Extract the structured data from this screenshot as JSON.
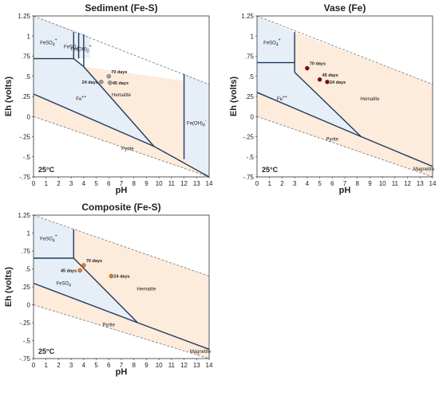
{
  "colors": {
    "blue_region": "#e6eef8",
    "orange_region": "#fdebdc",
    "boundary": "#1f3b5c",
    "dashed": "#777777"
  },
  "chart_data": [
    {
      "type": "scatter",
      "title": "Sediment (Fe-S)",
      "xlabel": "pH",
      "ylabel": "Eh (volts)",
      "xlim": [
        0,
        14
      ],
      "ylim": [
        -0.75,
        1.25
      ],
      "x_ticks": [
        "0",
        "1",
        "2",
        "3",
        "4",
        "5",
        "6",
        "7",
        "8",
        "9",
        "10",
        "11",
        "12",
        "13",
        "14"
      ],
      "y_ticks": [
        "-.75",
        "-.5",
        "-.25",
        "0",
        ".25",
        ".5",
        ".75",
        "1",
        "1.25"
      ],
      "temperature": "25°C",
      "field_labels": [
        {
          "text": "FeSO4+",
          "x": 1.2,
          "y": 0.9
        },
        {
          "text": "FeSO4",
          "x": 3.0,
          "y": 0.85
        },
        {
          "text": "Fe(OH)2+",
          "x": 3.8,
          "y": 0.82
        },
        {
          "text": "Fe++",
          "x": 3.8,
          "y": 0.2
        },
        {
          "text": "Hematite",
          "x": 7.0,
          "y": 0.25
        },
        {
          "text": "Fe(OH)4-",
          "x": 13.0,
          "y": -0.1
        },
        {
          "text": "Pyrite",
          "x": 7.5,
          "y": -0.42
        }
      ],
      "series": [
        {
          "name": "70 days",
          "x": [
            6.0
          ],
          "y": [
            0.5
          ],
          "color": "#9a9a9a"
        },
        {
          "name": "24 days",
          "x": [
            5.4
          ],
          "y": [
            0.43
          ],
          "color": "#9a9a9a"
        },
        {
          "name": "45 days",
          "x": [
            6.1
          ],
          "y": [
            0.42
          ],
          "color": "#9a9a9a"
        }
      ]
    },
    {
      "type": "scatter",
      "title": "Vase (Fe)",
      "xlabel": "pH",
      "ylabel": "Eh (volts)",
      "xlim": [
        0,
        14
      ],
      "ylim": [
        -0.75,
        1.25
      ],
      "x_ticks": [
        "0",
        "1",
        "2",
        "3",
        "4",
        "5",
        "6",
        "7",
        "8",
        "9",
        "10",
        "11",
        "12",
        "13",
        "14"
      ],
      "y_ticks": [
        "-.75",
        "-.5",
        "-.25",
        "0",
        ".25",
        ".5",
        ".75",
        "1",
        "1.25"
      ],
      "temperature": "25°C",
      "field_labels": [
        {
          "text": "FeSO4+",
          "x": 1.2,
          "y": 0.9
        },
        {
          "text": "Fe++",
          "x": 2.0,
          "y": 0.2
        },
        {
          "text": "Hematite",
          "x": 9.0,
          "y": 0.2
        },
        {
          "text": "Pyrite",
          "x": 6.0,
          "y": -0.3
        },
        {
          "text": "Magnetite",
          "x": 13.3,
          "y": -0.67
        }
      ],
      "series": [
        {
          "name": "70 days",
          "x": [
            4.0
          ],
          "y": [
            0.6
          ],
          "color": "#7a0c0c"
        },
        {
          "name": "45 days",
          "x": [
            5.0
          ],
          "y": [
            0.46
          ],
          "color": "#7a0c0c"
        },
        {
          "name": "24 days",
          "x": [
            5.6
          ],
          "y": [
            0.43
          ],
          "color": "#7a0c0c"
        }
      ]
    },
    {
      "type": "scatter",
      "title": "Composite (Fe-S)",
      "xlabel": "pH",
      "ylabel": "Eh (volts)",
      "xlim": [
        0,
        14
      ],
      "ylim": [
        -0.75,
        1.25
      ],
      "x_ticks": [
        "0",
        "1",
        "2",
        "3",
        "4",
        "5",
        "6",
        "7",
        "8",
        "9",
        "10",
        "11",
        "12",
        "13",
        "14"
      ],
      "y_ticks": [
        "-.75",
        "-.5",
        "-.25",
        "0",
        ".25",
        ".5",
        ".75",
        "1",
        "1.25"
      ],
      "temperature": "25°C",
      "field_labels": [
        {
          "text": "FeSO4+",
          "x": 1.2,
          "y": 0.9
        },
        {
          "text": "FeSO4",
          "x": 2.4,
          "y": 0.28
        },
        {
          "text": "Hematite",
          "x": 9.0,
          "y": 0.2
        },
        {
          "text": "Pyrite",
          "x": 6.0,
          "y": -0.3
        },
        {
          "text": "Magnetite",
          "x": 13.3,
          "y": -0.67
        }
      ],
      "series": [
        {
          "name": "70 days",
          "x": [
            4.0
          ],
          "y": [
            0.55
          ],
          "color": "#e07a1f"
        },
        {
          "name": "45 days",
          "x": [
            3.7
          ],
          "y": [
            0.48
          ],
          "color": "#e07a1f"
        },
        {
          "name": "24 days",
          "x": [
            6.2
          ],
          "y": [
            0.4
          ],
          "color": "#e07a1f"
        }
      ]
    }
  ]
}
